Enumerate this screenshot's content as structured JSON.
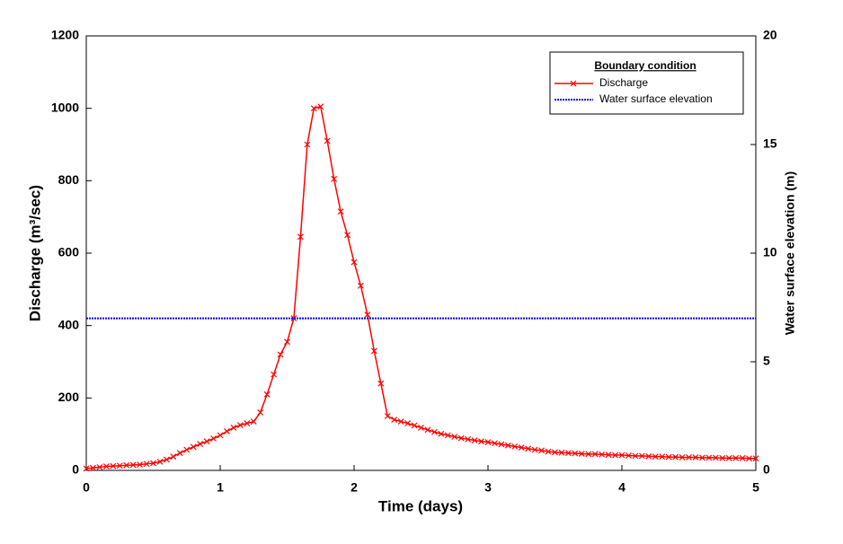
{
  "chart_data": {
    "type": "line",
    "xlabel": "Time (days)",
    "ylabel": "Discharge (m³/sec)",
    "y2label": "Water surface elevation (m)",
    "legend_title": "Boundary condition",
    "legend": "upper right",
    "xlim": [
      0,
      5
    ],
    "xticks": [
      0,
      1,
      2,
      3,
      4,
      5
    ],
    "ylim": [
      0,
      1200
    ],
    "yticks": [
      0,
      200,
      400,
      600,
      800,
      1000,
      1200
    ],
    "y2lim": [
      0,
      20
    ],
    "y2ticks": [
      0,
      5,
      10,
      15,
      20
    ],
    "series": [
      {
        "name": "Discharge",
        "color": "#ff0000",
        "marker": "x",
        "x": [
          0,
          0.05,
          0.1,
          0.15,
          0.2,
          0.25,
          0.3,
          0.35,
          0.4,
          0.45,
          0.5,
          0.55,
          0.6,
          0.65,
          0.7,
          0.75,
          0.8,
          0.85,
          0.9,
          0.95,
          1,
          1.05,
          1.1,
          1.15,
          1.2,
          1.25,
          1.3,
          1.35,
          1.4,
          1.45,
          1.5,
          1.55,
          1.6,
          1.65,
          1.7,
          1.75,
          1.8,
          1.85,
          1.9,
          1.95,
          2,
          2.05,
          2.1,
          2.15,
          2.2,
          2.25,
          2.3,
          2.35,
          2.4,
          2.45,
          2.5,
          2.55,
          2.6,
          2.65,
          2.7,
          2.75,
          2.8,
          2.85,
          2.9,
          2.95,
          3,
          3.05,
          3.1,
          3.15,
          3.2,
          3.25,
          3.3,
          3.35,
          3.4,
          3.45,
          3.5,
          3.55,
          3.6,
          3.65,
          3.7,
          3.75,
          3.8,
          3.85,
          3.9,
          3.95,
          4,
          4.05,
          4.1,
          4.15,
          4.2,
          4.25,
          4.3,
          4.35,
          4.4,
          4.45,
          4.5,
          4.55,
          4.6,
          4.65,
          4.7,
          4.75,
          4.8,
          4.85,
          4.9,
          4.95,
          5
        ],
        "values": [
          5,
          7,
          9,
          11,
          12,
          13,
          14,
          15,
          16,
          18,
          20,
          24,
          30,
          38,
          48,
          57,
          65,
          73,
          80,
          88,
          97,
          108,
          118,
          125,
          130,
          135,
          160,
          210,
          265,
          320,
          355,
          420,
          645,
          900,
          1000,
          1005,
          910,
          805,
          715,
          650,
          575,
          510,
          430,
          330,
          240,
          150,
          140,
          135,
          130,
          124,
          118,
          112,
          106,
          101,
          97,
          93,
          89,
          86,
          83,
          80,
          78,
          75,
          72,
          69,
          66,
          63,
          60,
          57,
          55,
          52,
          50,
          49,
          48,
          47,
          46,
          45,
          45,
          44,
          43,
          42,
          42,
          41,
          40,
          40,
          39,
          38,
          38,
          37,
          37,
          36,
          36,
          36,
          35,
          35,
          35,
          34,
          34,
          34,
          34,
          33,
          33
        ]
      },
      {
        "name": "Water surface elevation",
        "color": "#0000ff",
        "dashed": true,
        "axis": "y2",
        "x": [
          0,
          5
        ],
        "values": [
          7,
          7
        ]
      }
    ]
  }
}
